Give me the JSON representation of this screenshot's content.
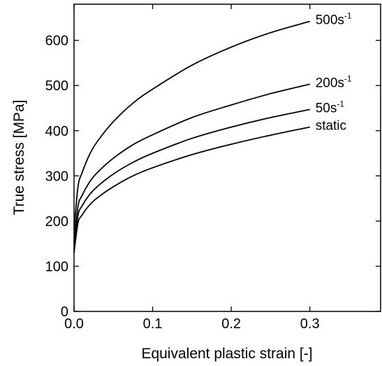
{
  "chart_data": {
    "type": "line",
    "title": "",
    "xlabel": "Equivalent plastic strain [-]",
    "ylabel": "True stress [MPa]",
    "xlim": [
      0,
      0.39
    ],
    "ylim": [
      0,
      680
    ],
    "x_ticks": [
      0.0,
      0.1,
      0.2,
      0.3
    ],
    "x_tick_labels": [
      "0.0",
      "0.1",
      "0.2",
      "0.3"
    ],
    "y_ticks": [
      0,
      100,
      200,
      300,
      400,
      500,
      600
    ],
    "y_tick_labels": [
      "0",
      "100",
      "200",
      "300",
      "400",
      "500",
      "600"
    ],
    "grid": false,
    "legend": "inline-right",
    "series": [
      {
        "name": "static",
        "label_base": "static",
        "label_sup": "",
        "x": [
          0,
          0.005,
          0.01,
          0.02,
          0.03,
          0.05,
          0.075,
          0.1,
          0.15,
          0.2,
          0.25,
          0.3
        ],
        "values": [
          130,
          195,
          213,
          236,
          252,
          276,
          300,
          318,
          347,
          370,
          390,
          408
        ]
      },
      {
        "name": "50s-1",
        "label_base": "50s",
        "label_sup": "-1",
        "x": [
          0,
          0.005,
          0.01,
          0.02,
          0.03,
          0.05,
          0.075,
          0.1,
          0.15,
          0.2,
          0.25,
          0.3
        ],
        "values": [
          140,
          212,
          233,
          259,
          277,
          304,
          330,
          350,
          383,
          408,
          429,
          447
        ]
      },
      {
        "name": "200s-1",
        "label_base": "200s",
        "label_sup": "-1",
        "x": [
          0,
          0.005,
          0.01,
          0.02,
          0.03,
          0.05,
          0.075,
          0.1,
          0.15,
          0.2,
          0.25,
          0.3
        ],
        "values": [
          150,
          232,
          256,
          287,
          308,
          339,
          369,
          391,
          429,
          457,
          482,
          503
        ]
      },
      {
        "name": "500s-1",
        "label_base": "500s",
        "label_sup": "-1",
        "x": [
          0,
          0.005,
          0.01,
          0.02,
          0.03,
          0.05,
          0.075,
          0.1,
          0.15,
          0.2,
          0.25,
          0.3
        ],
        "values": [
          180,
          275,
          306,
          348,
          377,
          420,
          461,
          492,
          545,
          585,
          617,
          642
        ]
      }
    ]
  }
}
